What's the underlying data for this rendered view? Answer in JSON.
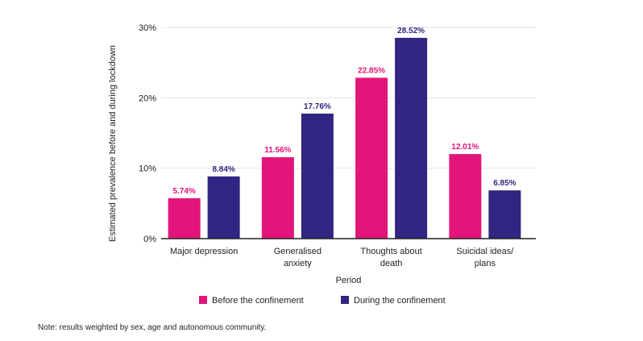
{
  "chart_data": {
    "type": "bar",
    "categories": [
      "Major depression",
      "Generalised anxiety",
      "Thoughts about death",
      "Suicidal ideas/ plans"
    ],
    "category_lines": [
      [
        "Major depression"
      ],
      [
        "Generalised",
        "anxiety"
      ],
      [
        "Thoughts about",
        "death"
      ],
      [
        "Suicidal ideas/",
        "plans"
      ]
    ],
    "series": [
      {
        "name": "Before the confinement",
        "color": "#e2157a",
        "values": [
          5.74,
          11.56,
          22.85,
          12.01
        ],
        "labels": [
          "5.74%",
          "11.56%",
          "22.85%",
          "12.01%"
        ]
      },
      {
        "name": "During the confinement",
        "color": "#302580",
        "values": [
          8.84,
          17.76,
          28.52,
          6.85
        ],
        "labels": [
          "8.84%",
          "17.76%",
          "28.52%",
          "6.85%"
        ]
      }
    ],
    "ylim": [
      0,
      30
    ],
    "yticks": [
      0,
      10,
      20,
      30
    ],
    "ytick_labels": [
      "0%",
      "10%",
      "20%",
      "30%"
    ],
    "xlabel": "Period",
    "ylabel": "Estimated prevalence before and during lockdown",
    "grid": true,
    "legend": "bottom"
  },
  "note": "Note: results weighted by sex, age and autonomous community."
}
